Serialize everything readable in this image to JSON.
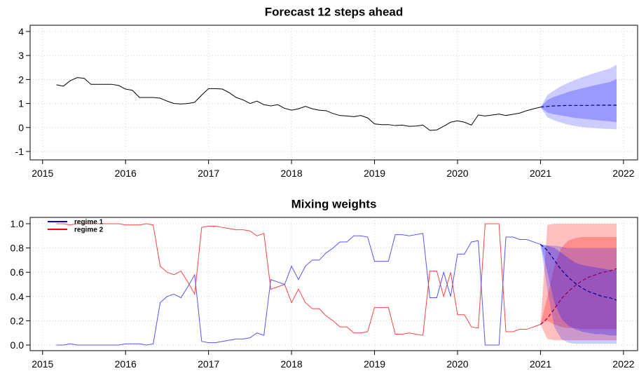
{
  "chart_data": [
    {
      "type": "line",
      "title": "Forecast 12 steps ahead",
      "xlim": [
        2014.85,
        2022.17
      ],
      "xticks": [
        2015,
        2016,
        2017,
        2018,
        2019,
        2020,
        2021,
        2022
      ],
      "ylim": [
        -1.35,
        4.26
      ],
      "yticks": [
        -1,
        0,
        1,
        2,
        3,
        4
      ],
      "grid": true,
      "x": [
        2015.167,
        2015.25,
        2015.333,
        2015.417,
        2015.5,
        2015.583,
        2015.667,
        2015.75,
        2015.833,
        2015.917,
        2016,
        2016.083,
        2016.167,
        2016.25,
        2016.333,
        2016.417,
        2016.5,
        2016.583,
        2016.667,
        2016.75,
        2016.833,
        2016.917,
        2017,
        2017.083,
        2017.167,
        2017.25,
        2017.333,
        2017.417,
        2017.5,
        2017.583,
        2017.667,
        2017.75,
        2017.833,
        2017.917,
        2018,
        2018.083,
        2018.167,
        2018.25,
        2018.333,
        2018.417,
        2018.5,
        2018.583,
        2018.667,
        2018.75,
        2018.833,
        2018.917,
        2019,
        2019.083,
        2019.167,
        2019.25,
        2019.333,
        2019.417,
        2019.5,
        2019.583,
        2019.667,
        2019.75,
        2019.833,
        2019.917,
        2020,
        2020.083,
        2020.167,
        2020.25,
        2020.333,
        2020.417,
        2020.5,
        2020.583,
        2020.667,
        2020.75,
        2020.833,
        2020.917,
        2021
      ],
      "forecast_x": [
        2021,
        2021.083,
        2021.167,
        2021.25,
        2021.333,
        2021.417,
        2021.5,
        2021.583,
        2021.667,
        2021.75,
        2021.833,
        2021.917
      ],
      "series": [
        {
          "color": "#000000",
          "values": [
            1.78,
            1.72,
            1.95,
            2.08,
            2.05,
            1.8,
            1.8,
            1.8,
            1.8,
            1.75,
            1.6,
            1.55,
            1.25,
            1.25,
            1.25,
            1.22,
            1.1,
            1.0,
            0.98,
            1.0,
            1.05,
            1.35,
            1.62,
            1.62,
            1.6,
            1.45,
            1.25,
            1.15,
            1.0,
            1.1,
            0.95,
            0.9,
            0.95,
            0.8,
            0.72,
            0.78,
            0.88,
            0.78,
            0.72,
            0.7,
            0.58,
            0.5,
            0.48,
            0.45,
            0.5,
            0.4,
            0.15,
            0.12,
            0.12,
            0.08,
            0.1,
            0.05,
            0.06,
            0.1,
            -0.12,
            -0.1,
            0.05,
            0.22,
            0.28,
            0.22,
            0.1,
            0.52,
            0.48,
            0.52,
            0.56,
            0.5,
            0.55,
            0.6,
            0.7,
            0.78,
            0.85
          ],
          "forecast": {
            "color": "#00008b",
            "mean": [
              0.85,
              0.88,
              0.9,
              0.91,
              0.92,
              0.92,
              0.92,
              0.92,
              0.93,
              0.93,
              0.93,
              0.93
            ],
            "bands": [
              {
                "color": "#ccccff",
                "lower": [
                  0.85,
                  0.42,
                  0.3,
                  0.2,
                  0.12,
                  0.06,
                  0.02,
                  -0.01,
                  -0.03,
                  -0.05,
                  -0.06,
                  -0.08
                ],
                "upper": [
                  0.85,
                  1.35,
                  1.55,
                  1.72,
                  1.86,
                  1.98,
                  2.09,
                  2.19,
                  2.28,
                  2.37,
                  2.45,
                  2.62
                ]
              },
              {
                "color": "#9999ff",
                "lower": [
                  0.85,
                  0.62,
                  0.55,
                  0.5,
                  0.45,
                  0.4,
                  0.37,
                  0.34,
                  0.31,
                  0.28,
                  0.26,
                  0.22
                ],
                "upper": [
                  0.85,
                  1.15,
                  1.28,
                  1.38,
                  1.48,
                  1.56,
                  1.63,
                  1.7,
                  1.77,
                  1.83,
                  1.89,
                  2.02
                ]
              }
            ]
          }
        }
      ]
    },
    {
      "type": "line",
      "title": "Mixing weights",
      "xlim": [
        2014.85,
        2022.17
      ],
      "xticks": [
        2015,
        2016,
        2017,
        2018,
        2019,
        2020,
        2021,
        2022
      ],
      "ylim": [
        -0.046,
        1.052
      ],
      "yticks": [
        {
          "value": 0,
          "label": "0.0"
        },
        0.2,
        0.4,
        0.6,
        0.8,
        {
          "value": 1,
          "label": "1.0"
        }
      ],
      "grid": true,
      "legend": "top-left",
      "x": [
        2015.167,
        2015.25,
        2015.333,
        2015.417,
        2015.5,
        2015.583,
        2015.667,
        2015.75,
        2015.833,
        2015.917,
        2016,
        2016.083,
        2016.167,
        2016.25,
        2016.333,
        2016.417,
        2016.5,
        2016.583,
        2016.667,
        2016.75,
        2016.833,
        2016.917,
        2017,
        2017.083,
        2017.167,
        2017.25,
        2017.333,
        2017.417,
        2017.5,
        2017.583,
        2017.667,
        2017.75,
        2017.833,
        2017.917,
        2018,
        2018.083,
        2018.167,
        2018.25,
        2018.333,
        2018.417,
        2018.5,
        2018.583,
        2018.667,
        2018.75,
        2018.833,
        2018.917,
        2019,
        2019.083,
        2019.167,
        2019.25,
        2019.333,
        2019.417,
        2019.5,
        2019.583,
        2019.667,
        2019.75,
        2019.833,
        2019.917,
        2020,
        2020.083,
        2020.167,
        2020.25,
        2020.333,
        2020.417,
        2020.5,
        2020.583,
        2020.667,
        2020.75,
        2020.833,
        2020.917,
        2021
      ],
      "forecast_x": [
        2021,
        2021.083,
        2021.167,
        2021.25,
        2021.333,
        2021.417,
        2021.5,
        2021.583,
        2021.667,
        2021.75,
        2021.833,
        2021.917
      ],
      "series": [
        {
          "name": "regime 2",
          "color": "#ff4444",
          "values": [
            1,
            1,
            0.99,
            1,
            1,
            1,
            1,
            1,
            1,
            1,
            0.99,
            0.99,
            0.99,
            1,
            0.99,
            0.65,
            0.6,
            0.58,
            0.61,
            0.52,
            0.42,
            0.97,
            0.98,
            0.98,
            0.97,
            0.96,
            0.95,
            0.95,
            0.94,
            0.9,
            0.92,
            0.46,
            0.48,
            0.5,
            0.35,
            0.46,
            0.35,
            0.3,
            0.3,
            0.24,
            0.2,
            0.15,
            0.15,
            0.1,
            0.1,
            0.11,
            0.31,
            0.31,
            0.31,
            0.09,
            0.09,
            0.1,
            0.09,
            0.08,
            0.61,
            0.61,
            0.4,
            0.6,
            0.25,
            0.25,
            0.15,
            0.14,
            1,
            1,
            1,
            0.11,
            0.11,
            0.13,
            0.13,
            0.15,
            0.17
          ],
          "forecast": {
            "color": "#8b0050",
            "mean": [
              0.17,
              0.22,
              0.3,
              0.38,
              0.44,
              0.49,
              0.53,
              0.56,
              0.58,
              0.6,
              0.61,
              0.63
            ],
            "bands": [
              {
                "color": "#ff000040",
                "lower": [
                  0.17,
                  0.05,
                  0.04,
                  0.04,
                  0.04,
                  0.04,
                  0.04,
                  0.04,
                  0.04,
                  0.04,
                  0.04,
                  0.04
                ],
                "upper": [
                  0.17,
                  0.99,
                  1,
                  1,
                  1,
                  1,
                  1,
                  1,
                  1,
                  1,
                  1,
                  1
                ]
              },
              {
                "color": "#ff000040",
                "lower": [
                  0.17,
                  0.2,
                  0.17,
                  0.15,
                  0.14,
                  0.14,
                  0.13,
                  0.13,
                  0.13,
                  0.13,
                  0.13,
                  0.13
                ],
                "upper": [
                  0.17,
                  0.4,
                  0.65,
                  0.8,
                  0.86,
                  0.88,
                  0.89,
                  0.89,
                  0.89,
                  0.89,
                  0.89,
                  0.89
                ]
              }
            ]
          }
        },
        {
          "name": "regime 1",
          "color": "#5555ff",
          "values": [
            0,
            0,
            0.01,
            0,
            0,
            0,
            0,
            0,
            0,
            0,
            0.01,
            0.01,
            0.01,
            0,
            0.01,
            0.35,
            0.4,
            0.42,
            0.39,
            0.48,
            0.58,
            0.03,
            0.02,
            0.02,
            0.03,
            0.04,
            0.05,
            0.05,
            0.06,
            0.1,
            0.08,
            0.54,
            0.52,
            0.5,
            0.65,
            0.54,
            0.65,
            0.7,
            0.7,
            0.76,
            0.8,
            0.85,
            0.85,
            0.9,
            0.9,
            0.89,
            0.69,
            0.69,
            0.69,
            0.91,
            0.91,
            0.9,
            0.91,
            0.92,
            0.39,
            0.39,
            0.6,
            0.4,
            0.75,
            0.75,
            0.85,
            0.86,
            0,
            0,
            0,
            0.89,
            0.89,
            0.87,
            0.87,
            0.85,
            0.83
          ],
          "forecast": {
            "color": "#00008b",
            "mean": [
              0.83,
              0.78,
              0.7,
              0.62,
              0.56,
              0.51,
              0.47,
              0.44,
              0.42,
              0.4,
              0.39,
              0.37
            ],
            "bands": [
              {
                "color": "#0000ff33",
                "lower": [
                  0.83,
                  0.45,
                  0.15,
                  0.05,
                  0.02,
                  0.01,
                  0.01,
                  0.01,
                  0.01,
                  0.01,
                  0.01,
                  0.01
                ],
                "upper": [
                  0.83,
                  0.82,
                  0.82,
                  0.81,
                  0.8,
                  0.8,
                  0.8,
                  0.8,
                  0.8,
                  0.8,
                  0.8,
                  0.8
                ]
              },
              {
                "color": "#0000ff40",
                "lower": [
                  0.83,
                  0.6,
                  0.35,
                  0.22,
                  0.16,
                  0.13,
                  0.11,
                  0.1,
                  0.09,
                  0.09,
                  0.08,
                  0.08
                ],
                "upper": [
                  0.83,
                  0.82,
                  0.8,
                  0.76,
                  0.72,
                  0.68,
                  0.66,
                  0.65,
                  0.64,
                  0.63,
                  0.62,
                  0.62
                ]
              }
            ]
          }
        }
      ]
    }
  ]
}
